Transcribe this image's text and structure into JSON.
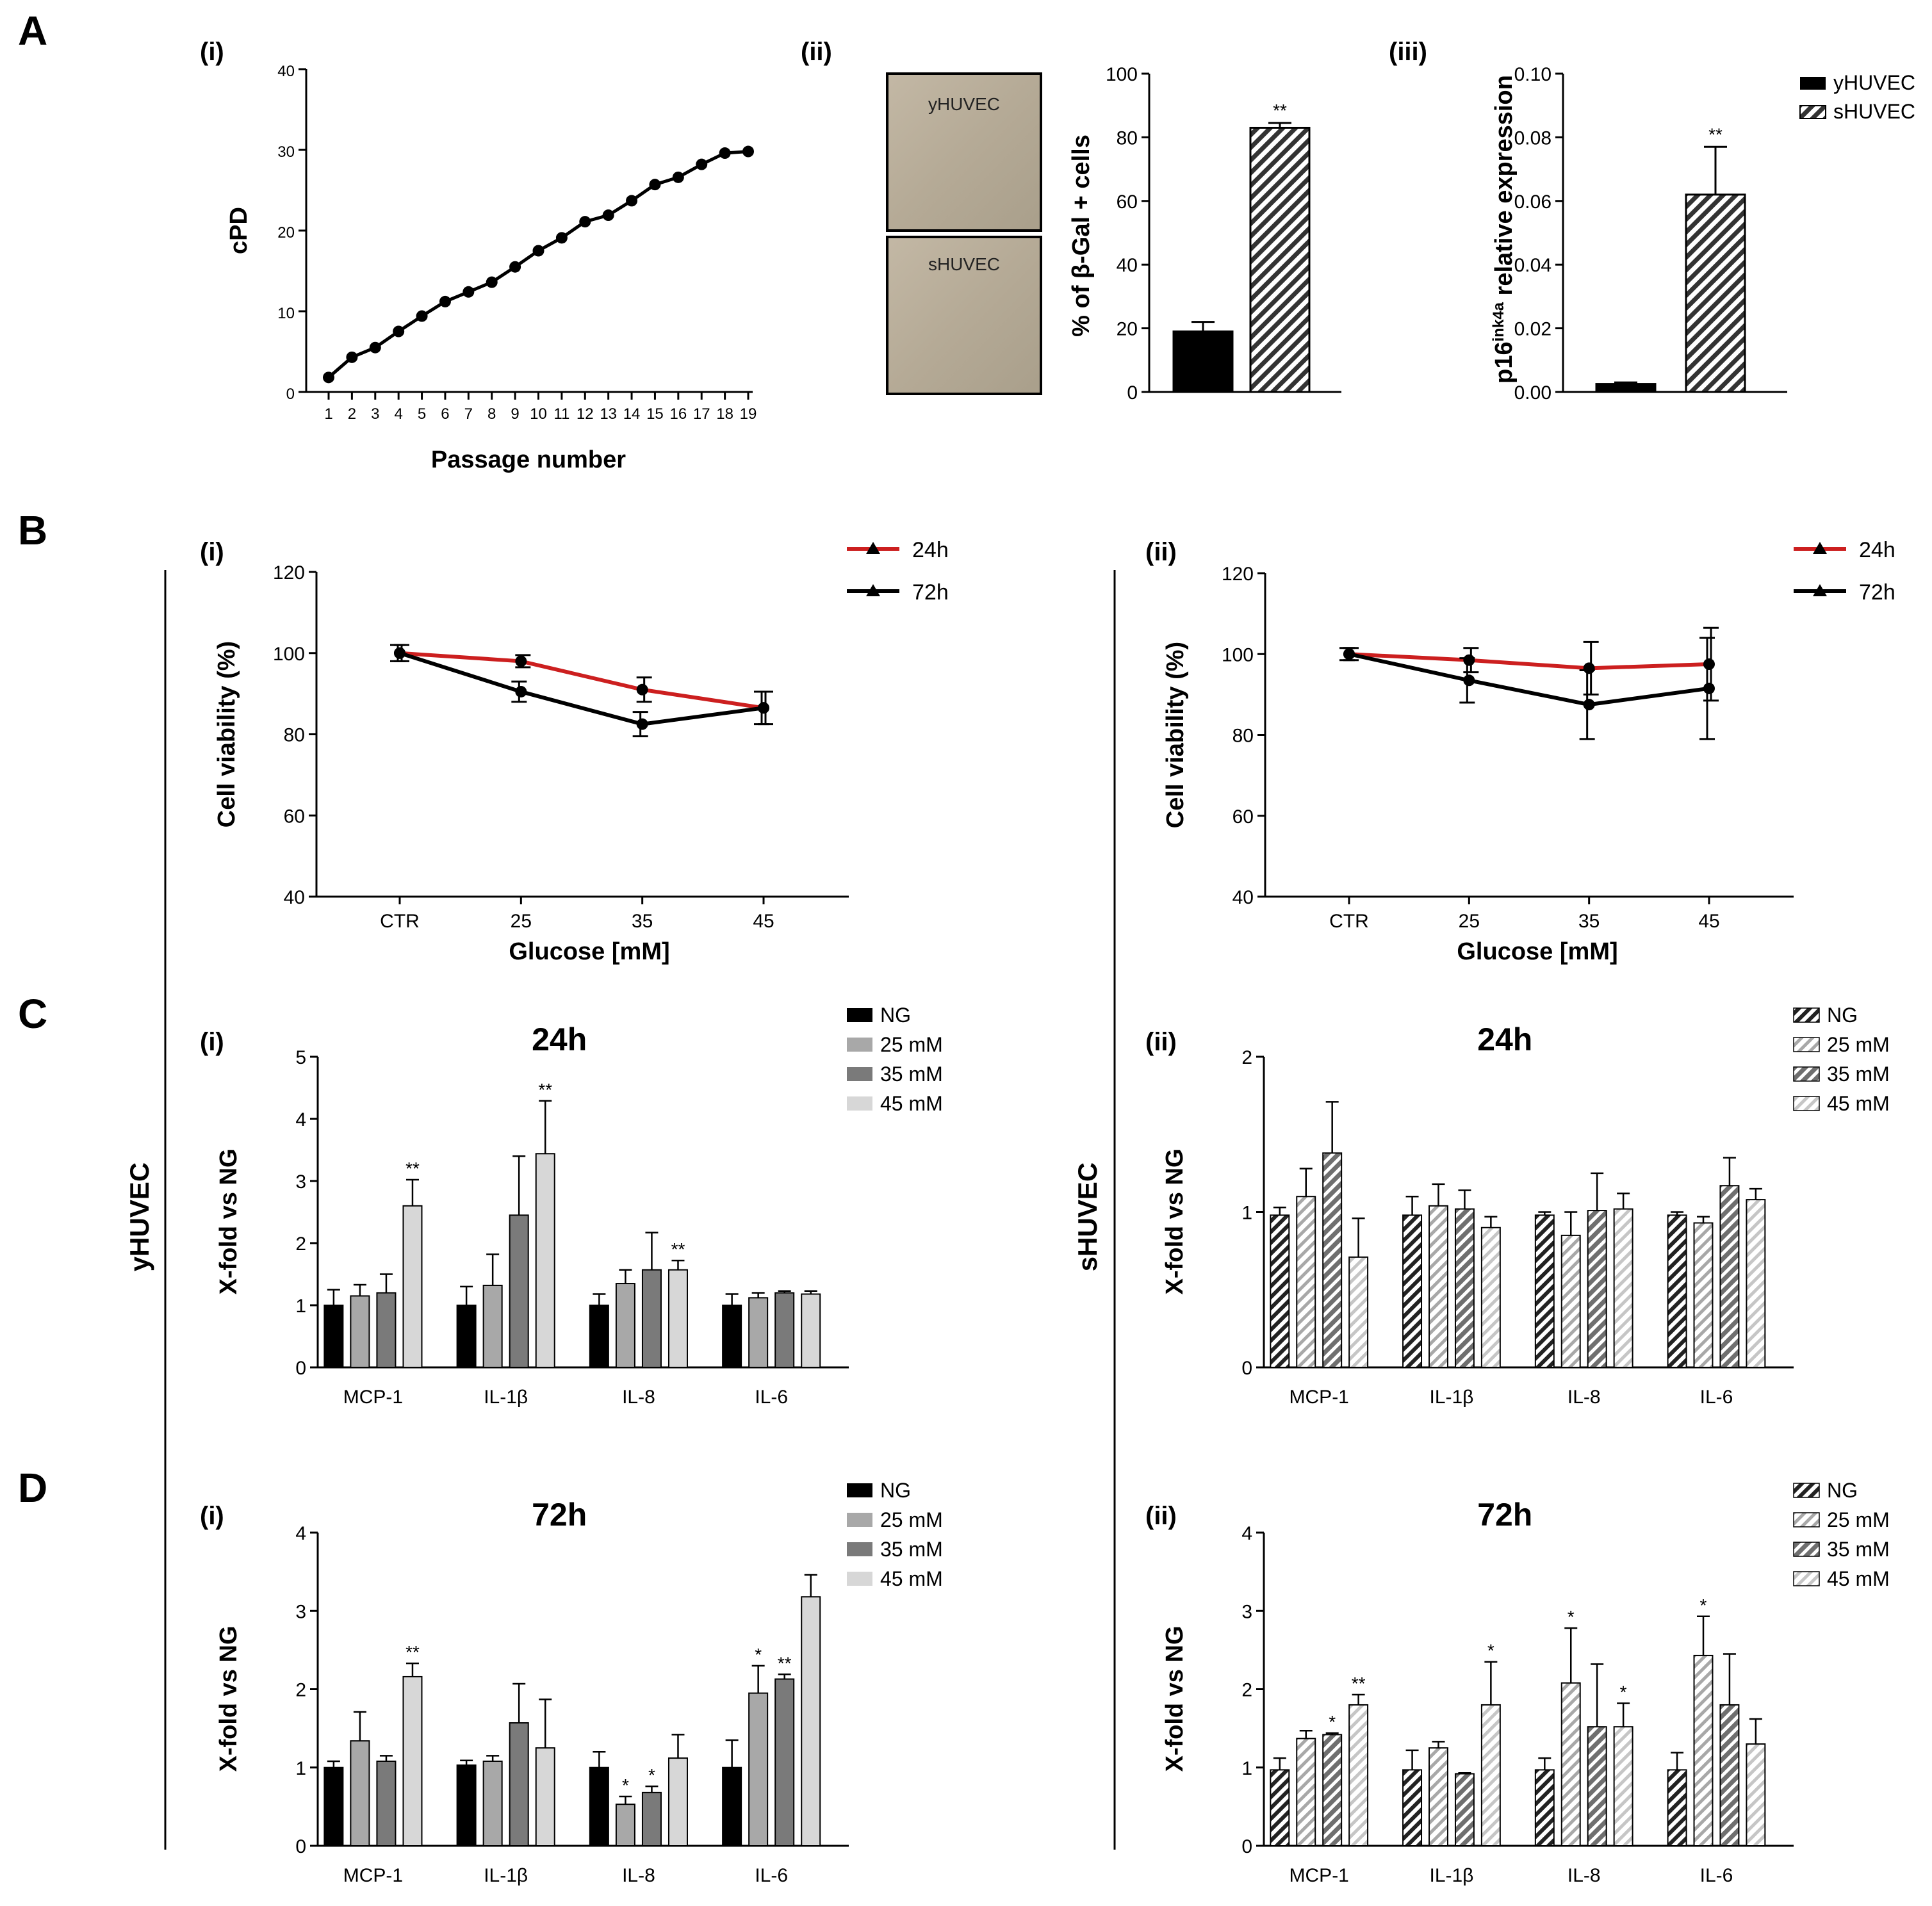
{
  "panel_letters": {
    "A": "A",
    "B": "B",
    "C": "C",
    "D": "D"
  },
  "sublabels": {
    "i": "(i)",
    "ii": "(ii)",
    "iii": "(iii)"
  },
  "side_labels": {
    "young": "yHUVEC",
    "senescent": "sHUVEC"
  },
  "micrographs": {
    "top_label": "yHUVEC",
    "bottom_label": "sHUVEC"
  },
  "colors": {
    "black": "#000000",
    "red": "#cc1f1f",
    "gray_25": "#a8a8a8",
    "gray_35": "#7a7a7a",
    "gray_45": "#d7d7d7",
    "micrograph": "#b7ab98"
  },
  "chart_data": [
    {
      "id": "A_i",
      "type": "line",
      "title": "",
      "xlabel": "Passage number",
      "ylabel": "cPD",
      "x": [
        1,
        2,
        3,
        4,
        5,
        6,
        7,
        8,
        9,
        10,
        11,
        12,
        13,
        14,
        15,
        16,
        17,
        18,
        19
      ],
      "x_ticks": [
        "1",
        "2",
        "3",
        "4",
        "5",
        "6",
        "7",
        "8",
        "9",
        "10",
        "11",
        "12",
        "13",
        "14",
        "15",
        "16",
        "17",
        "18",
        "19"
      ],
      "values": [
        1.8,
        4.3,
        5.5,
        7.5,
        9.4,
        11.2,
        12.4,
        13.6,
        15.5,
        17.5,
        19.1,
        21.1,
        21.9,
        23.7,
        25.7,
        26.6,
        28.2,
        29.6,
        29.8
      ],
      "ylim": [
        0,
        40
      ],
      "y_ticks": [
        "0",
        "10",
        "20",
        "30",
        "40"
      ]
    },
    {
      "id": "A_ii",
      "type": "bar",
      "title": "",
      "xlabel": "",
      "ylabel": "% of β-Gal + cells",
      "categories": [
        "yHUVEC",
        "sHUVEC"
      ],
      "values": [
        19,
        83
      ],
      "errors": [
        3,
        1.5
      ],
      "annotations": [
        "",
        "**"
      ],
      "ylim": [
        0,
        100
      ],
      "y_ticks": [
        "0",
        "20",
        "40",
        "60",
        "80",
        "100"
      ]
    },
    {
      "id": "A_iii",
      "type": "bar",
      "title": "",
      "xlabel": "",
      "ylabel": "p16 relative expression",
      "ylabel_main": "p16",
      "ylabel_sup": "ink4a",
      "ylabel_rest": "relative expression",
      "categories": [
        "yHUVEC",
        "sHUVEC"
      ],
      "values": [
        0.0025,
        0.062
      ],
      "errors": [
        0.0005,
        0.015
      ],
      "annotations": [
        "",
        "**"
      ],
      "ylim": [
        0,
        0.1
      ],
      "y_ticks": [
        "0.00",
        "0.02",
        "0.04",
        "0.06",
        "0.08",
        "0.10"
      ],
      "legend": [
        "yHUVEC",
        "sHUVEC"
      ]
    },
    {
      "id": "B_i",
      "type": "line",
      "title": "",
      "xlabel": "Glucose [mM]",
      "ylabel": "Cell viability (%)",
      "categories": [
        "CTR",
        "25",
        "35",
        "45"
      ],
      "series": [
        {
          "name": "24h",
          "values": [
            100,
            98,
            91,
            86.5
          ],
          "errors": [
            2,
            1.5,
            3,
            4
          ]
        },
        {
          "name": "72h",
          "values": [
            100,
            90.5,
            82.5,
            86.5
          ],
          "errors": [
            2,
            2.5,
            3,
            4
          ]
        }
      ],
      "ylim": [
        40,
        120
      ],
      "y_ticks": [
        "40",
        "60",
        "80",
        "100",
        "120"
      ]
    },
    {
      "id": "B_ii",
      "type": "line",
      "title": "",
      "xlabel": "Glucose [mM]",
      "ylabel": "Cell viability (%)",
      "categories": [
        "CTR",
        "25",
        "35",
        "45"
      ],
      "series": [
        {
          "name": "24h",
          "values": [
            100,
            98.5,
            96.5,
            97.5
          ],
          "errors": [
            1.5,
            3,
            6.5,
            9
          ]
        },
        {
          "name": "72h",
          "values": [
            100,
            93.5,
            87.5,
            91.5
          ],
          "errors": [
            1.5,
            5.5,
            8.5,
            12.5
          ]
        }
      ],
      "ylim": [
        40,
        120
      ],
      "y_ticks": [
        "40",
        "60",
        "80",
        "100",
        "120"
      ]
    },
    {
      "id": "C_i",
      "type": "bar",
      "pattern": "solid",
      "title": "24h",
      "xlabel": "",
      "ylabel": "X-fold vs NG",
      "categories": [
        "MCP-1",
        "IL-1β",
        "IL-8",
        "IL-6"
      ],
      "series": [
        {
          "name": "NG",
          "values": [
            1.0,
            1.0,
            1.0,
            1.0
          ],
          "errors": [
            0.25,
            0.3,
            0.18,
            0.18
          ],
          "annotations": [
            "",
            "",
            "",
            ""
          ]
        },
        {
          "name": "25 mM",
          "values": [
            1.15,
            1.32,
            1.35,
            1.12
          ],
          "errors": [
            0.18,
            0.5,
            0.22,
            0.08
          ],
          "annotations": [
            "",
            "",
            "",
            ""
          ]
        },
        {
          "name": "35 mM",
          "values": [
            1.2,
            2.45,
            1.57,
            1.2
          ],
          "errors": [
            0.3,
            0.95,
            0.6,
            0.03
          ],
          "annotations": [
            "",
            "",
            "",
            ""
          ]
        },
        {
          "name": "45 mM",
          "values": [
            2.6,
            3.44,
            1.57,
            1.18
          ],
          "errors": [
            0.42,
            0.85,
            0.15,
            0.05
          ],
          "annotations": [
            "**",
            "**",
            "**",
            ""
          ]
        }
      ],
      "ylim": [
        0,
        5
      ],
      "y_ticks": [
        "0",
        "1",
        "2",
        "3",
        "4",
        "5"
      ]
    },
    {
      "id": "C_ii",
      "type": "bar",
      "pattern": "hatched",
      "title": "24h",
      "xlabel": "",
      "ylabel": "X-fold vs NG",
      "categories": [
        "MCP-1",
        "IL-1β",
        "IL-8",
        "IL-6"
      ],
      "series": [
        {
          "name": "NG",
          "values": [
            0.98,
            0.98,
            0.98,
            0.98
          ],
          "errors": [
            0.05,
            0.12,
            0.02,
            0.02
          ],
          "annotations": [
            "",
            "",
            "",
            ""
          ]
        },
        {
          "name": "25 mM",
          "values": [
            1.1,
            1.04,
            0.85,
            0.93
          ],
          "errors": [
            0.18,
            0.14,
            0.15,
            0.04
          ],
          "annotations": [
            "",
            "",
            "",
            ""
          ]
        },
        {
          "name": "35 mM",
          "values": [
            1.38,
            1.02,
            1.01,
            1.17
          ],
          "errors": [
            0.33,
            0.12,
            0.24,
            0.18
          ],
          "annotations": [
            "",
            "",
            "",
            ""
          ]
        },
        {
          "name": "45 mM",
          "values": [
            0.71,
            0.9,
            1.02,
            1.08
          ],
          "errors": [
            0.25,
            0.07,
            0.1,
            0.07
          ],
          "annotations": [
            "",
            "",
            "",
            ""
          ]
        }
      ],
      "ylim": [
        0,
        2
      ],
      "y_ticks": [
        "0",
        "1",
        "2"
      ]
    },
    {
      "id": "D_i",
      "type": "bar",
      "pattern": "solid",
      "title": "72h",
      "xlabel": "",
      "ylabel": "X-fold vs NG",
      "categories": [
        "MCP-1",
        "IL-1β",
        "IL-8",
        "IL-6"
      ],
      "series": [
        {
          "name": "NG",
          "values": [
            1.0,
            1.03,
            1.0,
            1.0
          ],
          "errors": [
            0.08,
            0.06,
            0.2,
            0.35
          ],
          "annotations": [
            "",
            "",
            "",
            ""
          ]
        },
        {
          "name": "25 mM",
          "values": [
            1.34,
            1.08,
            0.53,
            1.95
          ],
          "errors": [
            0.37,
            0.07,
            0.1,
            0.35
          ],
          "annotations": [
            "",
            "",
            "*",
            "*"
          ]
        },
        {
          "name": "35 mM",
          "values": [
            1.08,
            1.57,
            0.68,
            2.13
          ],
          "errors": [
            0.07,
            0.5,
            0.08,
            0.06
          ],
          "annotations": [
            "",
            "",
            "*",
            "**"
          ]
        },
        {
          "name": "45 mM",
          "values": [
            2.16,
            1.25,
            1.12,
            3.18
          ],
          "errors": [
            0.17,
            0.62,
            0.3,
            0.28
          ],
          "annotations": [
            "**",
            "",
            "",
            ""
          ]
        }
      ],
      "ylim": [
        0,
        4
      ],
      "y_ticks": [
        "0",
        "1",
        "2",
        "3",
        "4"
      ]
    },
    {
      "id": "D_ii",
      "type": "bar",
      "pattern": "hatched",
      "title": "72h",
      "xlabel": "",
      "ylabel": "X-fold vs NG",
      "categories": [
        "MCP-1",
        "IL-1β",
        "IL-8",
        "IL-6"
      ],
      "series": [
        {
          "name": "NG",
          "values": [
            0.97,
            0.97,
            0.97,
            0.97
          ],
          "errors": [
            0.15,
            0.25,
            0.15,
            0.22
          ],
          "annotations": [
            "",
            "",
            "",
            ""
          ]
        },
        {
          "name": "25 mM",
          "values": [
            1.37,
            1.25,
            2.08,
            2.43
          ],
          "errors": [
            0.1,
            0.08,
            0.7,
            0.5
          ],
          "annotations": [
            "",
            "",
            "*",
            "*"
          ]
        },
        {
          "name": "35 mM",
          "values": [
            1.42,
            0.92,
            1.52,
            1.8
          ],
          "errors": [
            0.02,
            0.01,
            0.8,
            0.65
          ],
          "annotations": [
            "*",
            "",
            "",
            ""
          ]
        },
        {
          "name": "45 mM",
          "values": [
            1.8,
            1.8,
            1.52,
            1.3
          ],
          "errors": [
            0.13,
            0.55,
            0.3,
            0.32
          ],
          "annotations": [
            "**",
            "*",
            "*",
            ""
          ]
        }
      ],
      "ylim": [
        0,
        4
      ],
      "y_ticks": [
        "0",
        "1",
        "2",
        "3",
        "4"
      ]
    }
  ]
}
